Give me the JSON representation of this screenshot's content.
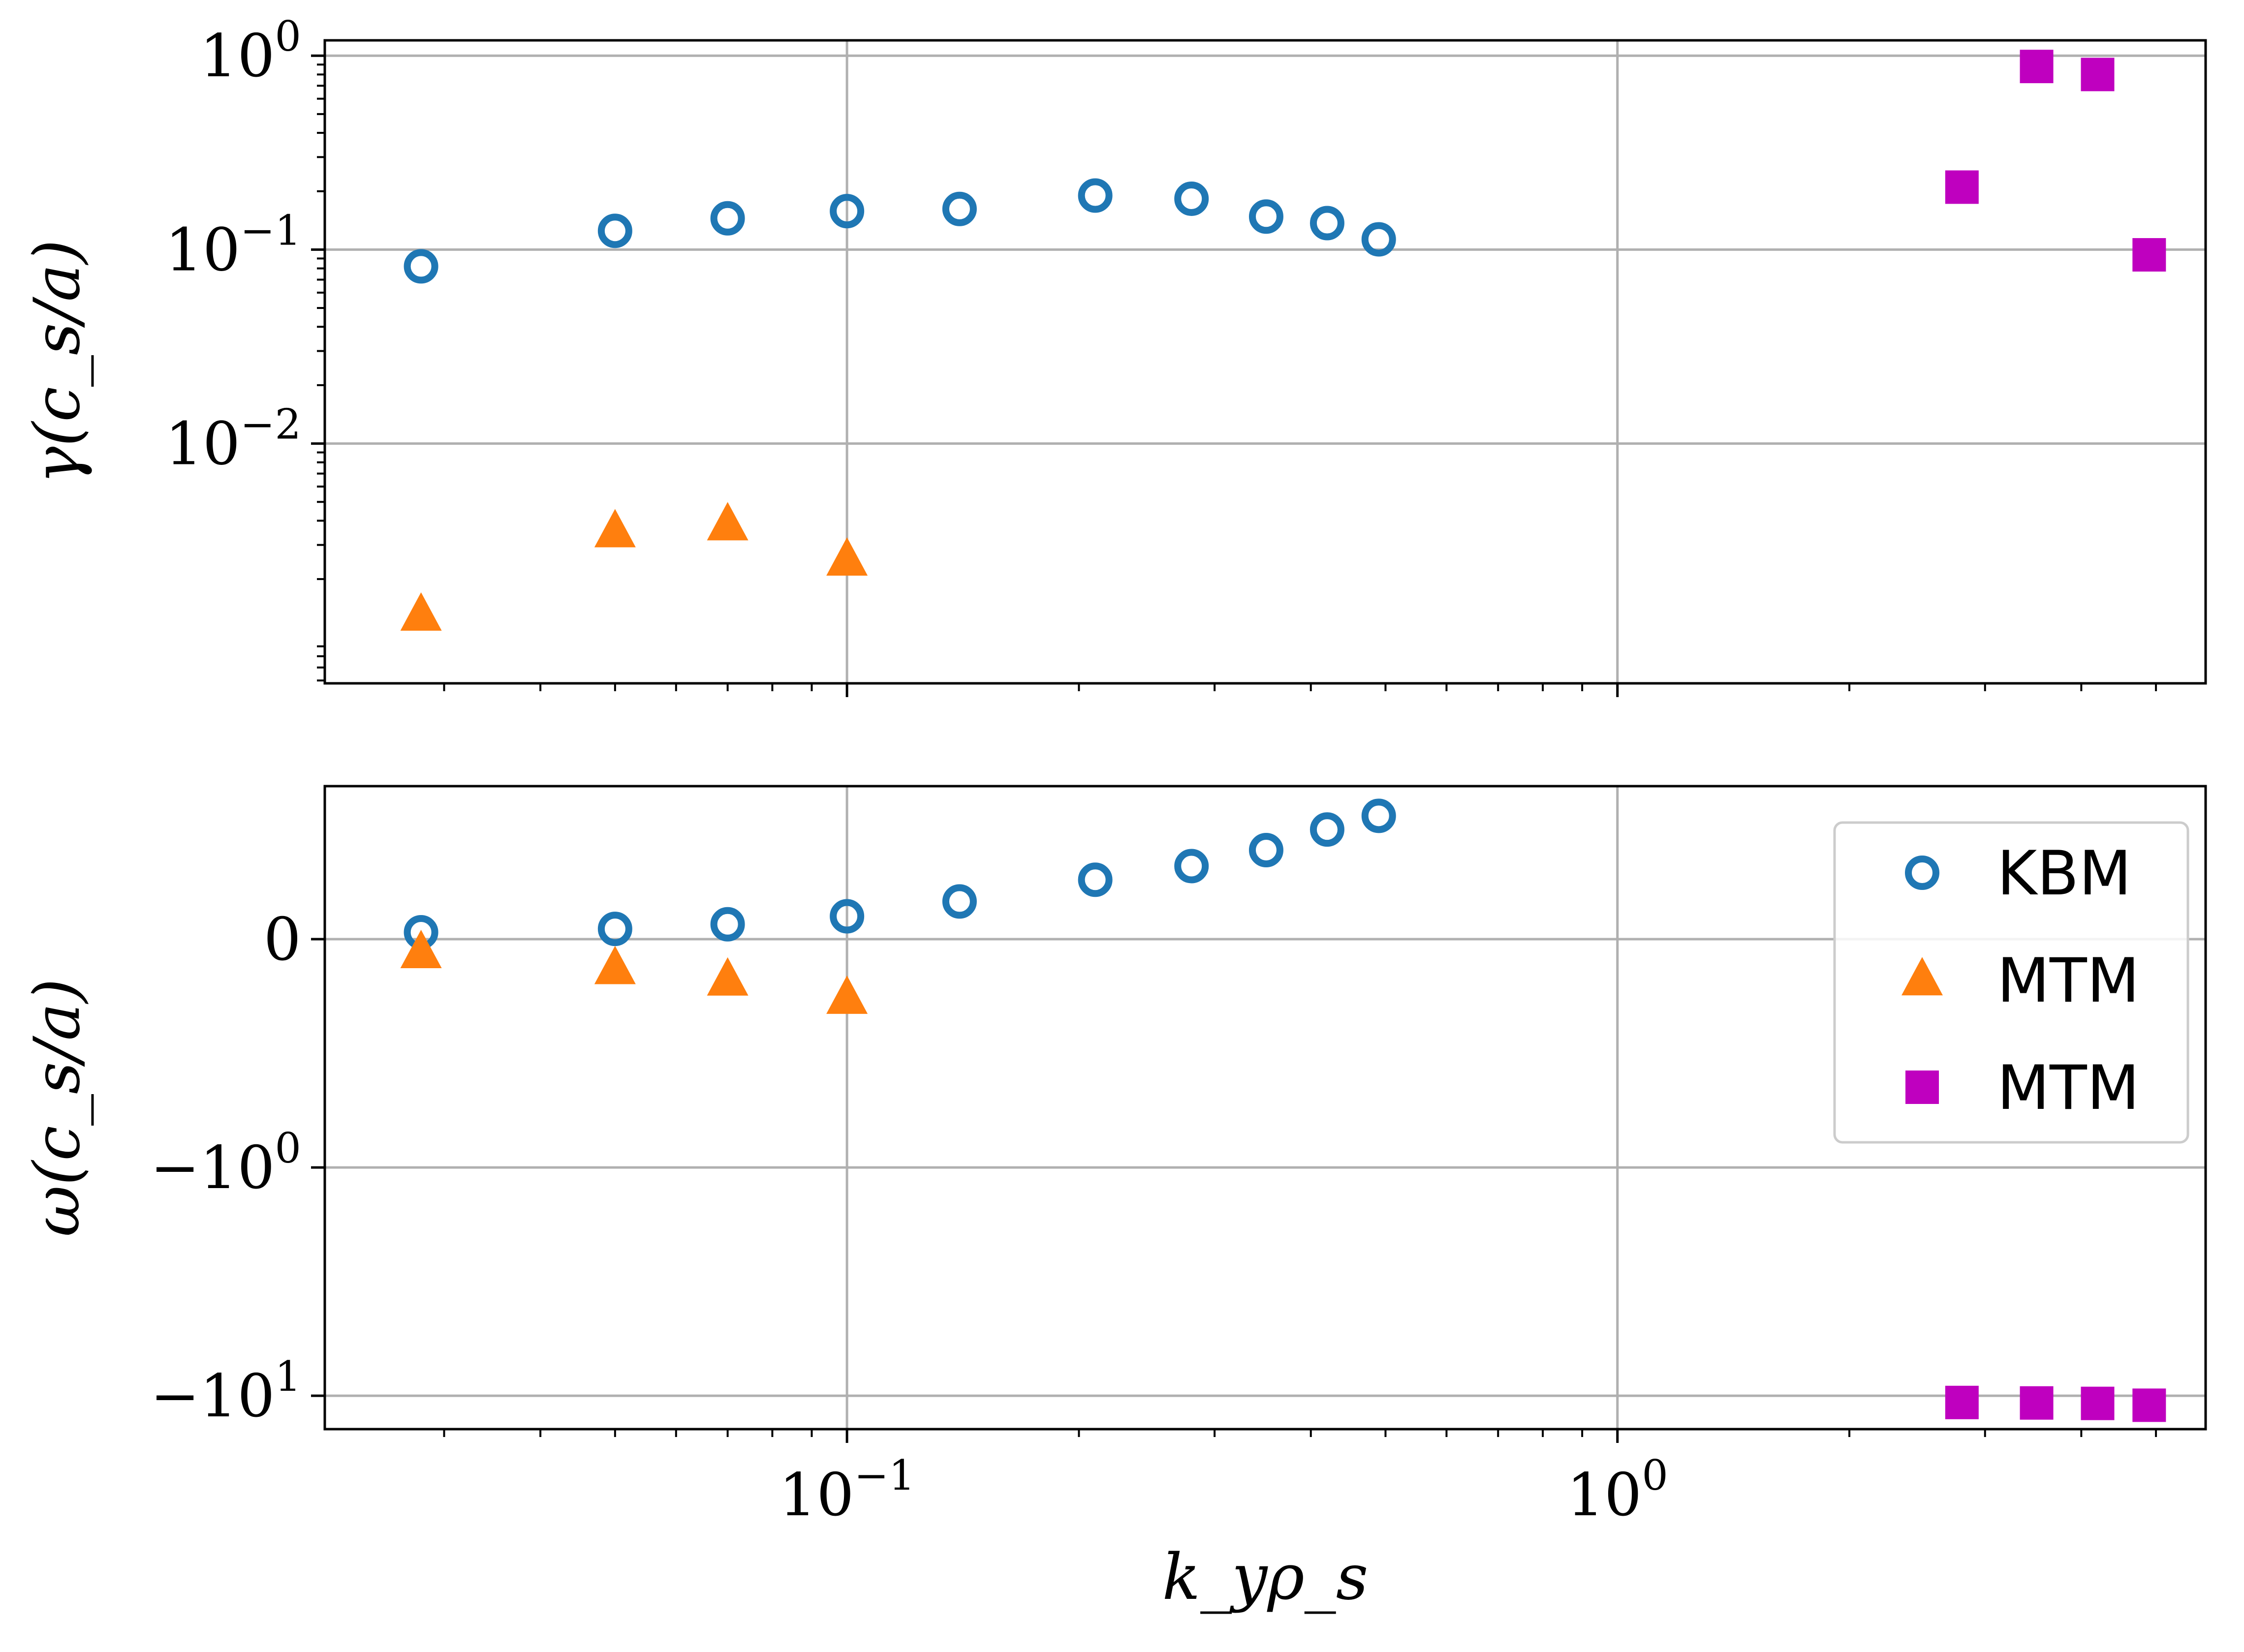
{
  "chart_data": [
    {
      "type": "scatter",
      "panel": "top",
      "title": "",
      "ylabel": "γ(c_s/a)",
      "xlabel": "",
      "xscale": "log",
      "yscale": "log",
      "xlim": [
        0.021,
        5.8
      ],
      "ylim": [
        0.00058,
        1.2
      ],
      "grid": true,
      "ytick_labels": [
        {
          "value": 1,
          "base": "10",
          "exp": "0"
        },
        {
          "value": 0.1,
          "base": "10",
          "exp": "−1"
        },
        {
          "value": 0.01,
          "base": "10",
          "exp": "−2"
        }
      ],
      "series": [
        {
          "marker": "open-circle",
          "color": "#1f77b4",
          "x": [
            0.028,
            0.05,
            0.07,
            0.1,
            0.14,
            0.21,
            0.28,
            0.35,
            0.42,
            0.49
          ],
          "y": [
            0.082,
            0.125,
            0.145,
            0.158,
            0.162,
            0.19,
            0.183,
            0.148,
            0.137,
            0.113
          ]
        },
        {
          "marker": "filled-triangle",
          "color": "#ff7f0e",
          "x": [
            0.028,
            0.05,
            0.07,
            0.1
          ],
          "y": [
            0.0013,
            0.0035,
            0.0038,
            0.0025
          ]
        },
        {
          "marker": "filled-square",
          "color": "#bf00bf",
          "x": [
            2.8,
            3.5,
            4.2,
            4.9
          ],
          "y": [
            0.21,
            0.88,
            0.8,
            0.094
          ]
        }
      ]
    },
    {
      "type": "scatter",
      "panel": "bottom",
      "title": "",
      "ylabel": "ω(c_s/a)",
      "xlabel": "k_yρ_s",
      "xscale": "log",
      "yscale": "symlog",
      "symlog_linthresh": 1,
      "xlim": [
        0.021,
        5.8
      ],
      "ylim": [
        -14,
        0.67
      ],
      "grid": true,
      "xtick_labels": [
        {
          "value": 0.1,
          "base": "10",
          "exp": "−1"
        },
        {
          "value": 1,
          "base": "10",
          "exp": "0"
        }
      ],
      "ytick_labels": [
        {
          "value": 0,
          "text": "0"
        },
        {
          "value": -1,
          "base": "−10",
          "exp": "0"
        },
        {
          "value": -10,
          "base": "−10",
          "exp": "1"
        }
      ],
      "legend": {
        "placement": "right",
        "entries": [
          {
            "label": "KBM",
            "marker": "open-circle",
            "color": "#1f77b4"
          },
          {
            "label": "MTM",
            "marker": "filled-triangle",
            "color": "#ff7f0e"
          },
          {
            "label": "MTM",
            "marker": "filled-square",
            "color": "#bf00bf"
          }
        ]
      },
      "series": [
        {
          "marker": "open-circle",
          "color": "#1f77b4",
          "x": [
            0.028,
            0.05,
            0.07,
            0.1,
            0.14,
            0.21,
            0.28,
            0.35,
            0.42,
            0.49
          ],
          "y": [
            0.03,
            0.045,
            0.065,
            0.1,
            0.165,
            0.26,
            0.32,
            0.39,
            0.48,
            0.54
          ]
        },
        {
          "marker": "filled-triangle",
          "color": "#ff7f0e",
          "x": [
            0.028,
            0.05,
            0.07,
            0.1
          ],
          "y": [
            -0.06,
            -0.13,
            -0.18,
            -0.26
          ]
        },
        {
          "marker": "filled-square",
          "color": "#bf00bf",
          "x": [
            2.8,
            3.5,
            4.2,
            4.9
          ],
          "y": [
            -10.7,
            -10.75,
            -10.8,
            -11.0
          ]
        }
      ]
    }
  ]
}
